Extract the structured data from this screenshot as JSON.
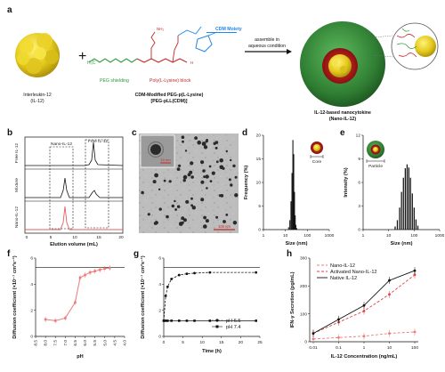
{
  "panel_labels": [
    "a",
    "b",
    "c",
    "d",
    "e",
    "f",
    "g",
    "h"
  ],
  "panel_a": {
    "il12_name": "Interleukin-12",
    "il12_abbr": "(IL-12)",
    "polymer_name": "CDM-Modified PEG-p(L-Lysine)",
    "polymer_abbr": "[PEG-pLL(CDM)]",
    "cdm_label": "CDM Moiety",
    "peg_label": "PEG shielding",
    "pll_label": "Poly(L-Lysine) block",
    "arrow_line1": "assemble in",
    "arrow_line2": "aqueous condition",
    "nano_name": "IL-12-based nanocytokine",
    "nano_abbr": "(Nano-IL-12)",
    "plus_sign": "+",
    "colors": {
      "il12": "#e8d020",
      "peg": "#2e9a3e",
      "pll": "#c62828",
      "cdm": "#1e88e5",
      "shell": "#2f7d32"
    }
  },
  "panel_b": {
    "traces": [
      "Free IL-12",
      "Mixture",
      "Nano-IL-12"
    ],
    "annot_free": "Free IL-12",
    "annot_nano": "Nano-IL-12",
    "xlabel": "Elution volume (mL)",
    "xticks": [
      "0",
      "5",
      "10",
      "15",
      "20"
    ],
    "colors": {
      "nano": "#e06060",
      "other": "#111111"
    }
  },
  "panel_c": {
    "scale_inset": "10 nm",
    "scale_main": "100 nm"
  },
  "panel_d": {
    "chart_data": {
      "type": "bar",
      "x": [
        14,
        16,
        18,
        20,
        22,
        24,
        26,
        28,
        30,
        33
      ],
      "values": [
        0.5,
        2,
        6,
        12,
        19,
        16,
        8,
        3,
        1,
        0.3
      ],
      "xscale": "log",
      "xlabel": "Size (nm)",
      "ylabel": "Frequency (%)",
      "xticks": [
        "1",
        "10",
        "100",
        "1000"
      ],
      "yticks": [
        "0",
        "5",
        "10",
        "15",
        "20"
      ],
      "ylim": [
        0,
        20
      ],
      "inset_label": "Core"
    }
  },
  "panel_e": {
    "chart_data": {
      "type": "bar",
      "x": [
        18,
        22,
        27,
        32,
        38,
        45,
        53,
        62,
        72,
        85,
        100,
        118,
        140
      ],
      "values": [
        0.4,
        1.2,
        2.8,
        4.8,
        6.6,
        7.8,
        8.3,
        7.9,
        6.6,
        4.6,
        2.8,
        1.3,
        0.5
      ],
      "xscale": "log",
      "xlabel": "Size (nm)",
      "ylabel": "Intensity (%)",
      "xticks": [
        "1",
        "10",
        "100",
        "1000"
      ],
      "yticks": [
        "0",
        "3",
        "6",
        "9",
        "12"
      ],
      "ylim": [
        0,
        12
      ],
      "inset_label": "Particle"
    }
  },
  "panel_f": {
    "chart_data": {
      "type": "line",
      "x": [
        8.0,
        7.5,
        7.0,
        6.5,
        6.25,
        6.0,
        5.75,
        5.5,
        5.25,
        5.0,
        4.75
      ],
      "values": [
        1.3,
        1.2,
        1.4,
        2.6,
        4.5,
        4.7,
        4.9,
        5.0,
        5.1,
        5.2,
        5.25
      ],
      "xlabel": "pH",
      "ylabel": "Diffusion coefficient (×10⁻⁷ cm²s⁻¹)",
      "xticks": [
        "8.5",
        "8.0",
        "7.5",
        "7.0",
        "6.5",
        "6.0",
        "5.5",
        "5.0",
        "4.5",
        "4.0"
      ],
      "xlim": [
        8.5,
        4.0
      ],
      "yticks": [
        "0",
        "2",
        "4",
        "6"
      ],
      "ylim": [
        0,
        6
      ],
      "ref_line": 5.3,
      "color": "#ee7a7a"
    }
  },
  "panel_g": {
    "chart_data": {
      "type": "line",
      "series": [
        {
          "name": "pH 6.5",
          "x": [
            0,
            0.5,
            1,
            2,
            4,
            6,
            8,
            12,
            24
          ],
          "values": [
            1.2,
            3.1,
            3.8,
            4.4,
            4.7,
            4.8,
            4.85,
            4.9,
            4.9
          ]
        },
        {
          "name": "pH 7.4",
          "x": [
            0,
            0.5,
            1,
            2,
            4,
            6,
            8,
            12,
            24
          ],
          "values": [
            1.2,
            1.2,
            1.2,
            1.2,
            1.2,
            1.2,
            1.2,
            1.2,
            1.2
          ]
        }
      ],
      "xlabel": "Time (h)",
      "ylabel": "Diffusion coefficient (×10⁻⁷ cm²s⁻¹)",
      "xticks": [
        "0",
        "5",
        "10",
        "15",
        "20",
        "25"
      ],
      "xlim": [
        0,
        25
      ],
      "yticks": [
        "0",
        "2",
        "4",
        "6"
      ],
      "ylim": [
        0,
        6
      ],
      "ref_line": 5.3
    }
  },
  "panel_h": {
    "chart_data": {
      "type": "line",
      "x": [
        0.01,
        0.1,
        1,
        10,
        100
      ],
      "xscale": "log",
      "series": [
        {
          "name": "Nano-IL-12",
          "values": [
            10,
            15,
            20,
            30,
            35
          ],
          "color": "#ee7a7a",
          "dash": "3,2"
        },
        {
          "name": "Activated Nano-IL-12",
          "values": [
            30,
            70,
            110,
            170,
            240
          ],
          "color": "#e04040",
          "dash": "3,2"
        },
        {
          "name": "Native IL-12",
          "values": [
            30,
            80,
            130,
            220,
            255
          ],
          "color": "#111111",
          "dash": ""
        }
      ],
      "xlabel": "IL-12 Concentration (ng/mL)",
      "ylabel": "IFN-γ Secretion (pg/mL)",
      "xticks": [
        "0.01",
        "0.1",
        "1",
        "10",
        "100"
      ],
      "yticks": [
        "0",
        "100",
        "200",
        "300"
      ],
      "ylim": [
        0,
        300
      ]
    }
  }
}
